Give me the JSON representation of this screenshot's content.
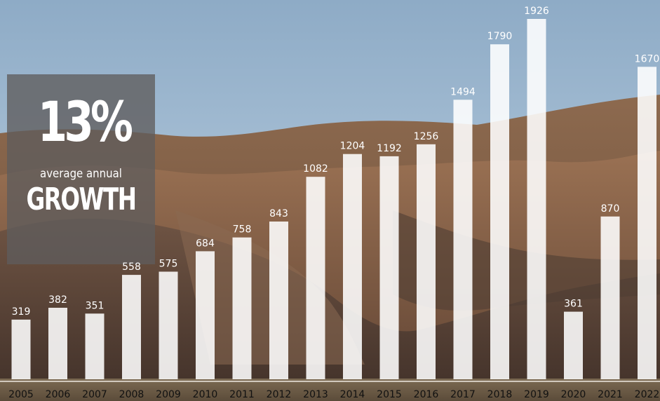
{
  "colors": {
    "bar_fill": "#ffffff",
    "value_label": "#ffffff",
    "axis_label": "#111111",
    "stat_box_bg": "#5f5c5c"
  },
  "stat": {
    "value": "13%",
    "caption": "average annual",
    "word": "GROWTH"
  },
  "chart_data": {
    "type": "bar",
    "categories": [
      "2005",
      "2006",
      "2007",
      "2008",
      "2009",
      "2010",
      "2011",
      "2012",
      "2013",
      "2014",
      "2015",
      "2016",
      "2017",
      "2018",
      "2019",
      "2020",
      "2021",
      "2022"
    ],
    "values": [
      319,
      382,
      351,
      558,
      575,
      684,
      758,
      843,
      1082,
      1204,
      1192,
      1256,
      1494,
      1790,
      1926,
      361,
      870,
      1670
    ],
    "value_labels": [
      "319",
      "382",
      "351",
      "558",
      "575",
      "684",
      "758",
      "843",
      "1082",
      "1204",
      "1192",
      "1256",
      "1494",
      "1790",
      "1926",
      "361",
      "870",
      "1670"
    ],
    "title": "",
    "xlabel": "",
    "ylabel": "",
    "grid": false,
    "data_labels": "above-bars"
  }
}
